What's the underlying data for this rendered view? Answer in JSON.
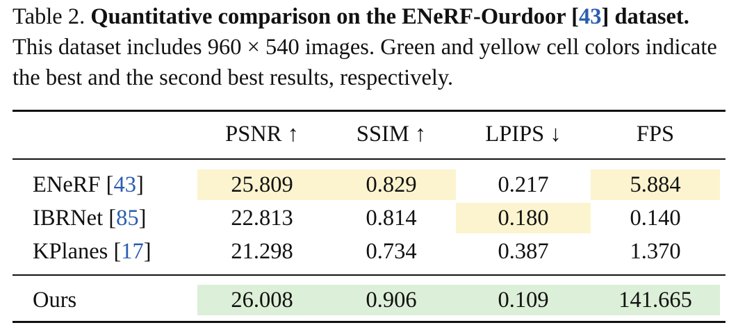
{
  "caption": {
    "label": "Table 2.",
    "title": "Quantitative comparison on the ENeRF-Ourdoor [",
    "title_ref": "43",
    "title_end": "]",
    "title_tail": "dataset.",
    "body": "This dataset includes 960 × 540 images. Green and yellow cell colors indicate the best and the second best results, respectively."
  },
  "columns": [
    "PSNR ↑",
    "SSIM ↑",
    "LPIPS ↓",
    "FPS"
  ],
  "rows": [
    {
      "method": "ENeRF",
      "ref": "43",
      "values": [
        "25.809",
        "0.829",
        "0.217",
        "5.884"
      ]
    },
    {
      "method": "IBRNet",
      "ref": "85",
      "values": [
        "22.813",
        "0.814",
        "0.180",
        "0.140"
      ]
    },
    {
      "method": "KPlanes",
      "ref": "17",
      "values": [
        "21.298",
        "0.734",
        "0.387",
        "1.370"
      ]
    },
    {
      "method": "Ours",
      "ref": "",
      "values": [
        "26.008",
        "0.906",
        "0.109",
        "141.665"
      ]
    }
  ],
  "colors": {
    "best": "#dcefd8",
    "second": "#fcf4cf",
    "ref": "#2a5db0"
  }
}
